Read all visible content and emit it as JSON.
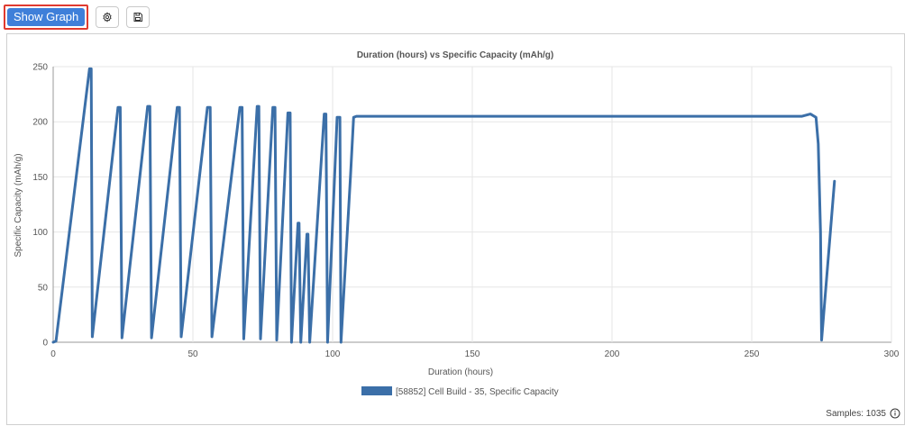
{
  "toolbar": {
    "show_graph_label": "Show Graph",
    "settings_icon": "gear-icon",
    "save_icon": "floppy-disk-icon"
  },
  "footer": {
    "samples_label": "Samples: 1035",
    "info_icon": "info-icon"
  },
  "colors": {
    "series": "#3b6fa8",
    "button": "#3f7fd9",
    "highlight": "#e03a2f"
  },
  "chart_data": {
    "type": "line",
    "title": "Duration (hours) vs Specific Capacity (mAh/g)",
    "xlabel": "Duration (hours)",
    "ylabel": "Specific Capacity (mAh/g)",
    "xlim": [
      0,
      300
    ],
    "ylim": [
      0,
      250
    ],
    "xticks": [
      0,
      50,
      100,
      150,
      200,
      250,
      300
    ],
    "yticks": [
      0,
      50,
      100,
      150,
      200,
      250
    ],
    "grid": true,
    "legend_position": "bottom",
    "series": [
      {
        "name": "[58852] Cell Build - 35, Specific Capacity",
        "x": [
          0,
          1,
          13,
          13.6,
          14,
          23.2,
          24,
          24.6,
          33.8,
          34.6,
          35.2,
          44.4,
          45.2,
          45.8,
          55.2,
          56.2,
          56.8,
          66.8,
          67.6,
          68.2,
          73,
          73.6,
          74.2,
          78.6,
          79.4,
          80,
          84,
          84.8,
          85.3,
          87.6,
          88,
          88.6,
          90.8,
          91.2,
          91.8,
          97,
          97.6,
          98.2,
          101.6,
          102.6,
          103,
          106.4,
          107.5,
          108.5,
          268,
          271,
          273,
          273.8,
          274.6,
          275,
          279.6
        ],
        "y": [
          0,
          1,
          248,
          248,
          5,
          213,
          213,
          4,
          214,
          214,
          4,
          213,
          213,
          5,
          213,
          213,
          5,
          213,
          213,
          3,
          214,
          214,
          3,
          213,
          213,
          2,
          208,
          208,
          0,
          108,
          108,
          0,
          98,
          98,
          0,
          207,
          207,
          0,
          204,
          204,
          0,
          150,
          204,
          205,
          205,
          207,
          204,
          180,
          100,
          2,
          146
        ]
      }
    ]
  }
}
